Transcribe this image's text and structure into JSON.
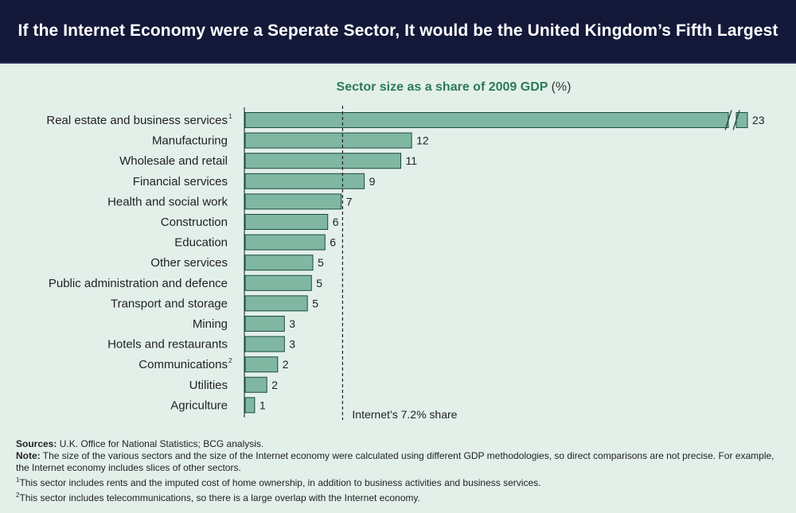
{
  "banner": {
    "title": "If the Internet Economy were a Seperate Sector, It would be the United Kingdom’s Fifth Largest"
  },
  "chart_data": {
    "type": "bar",
    "orientation": "horizontal",
    "title": "Sector size as a share of 2009 GDP",
    "title_unit": "(%)",
    "categories": [
      "Real estate and business services",
      "Manufacturing",
      "Wholesale and retail",
      "Financial services",
      "Health and social work",
      "Construction",
      "Education",
      "Other services",
      "Public administration and defence",
      "Transport and storage",
      "Mining",
      "Hotels and restaurants",
      "Communications",
      "Utilities",
      "Agriculture"
    ],
    "category_footnote_marks": [
      "1",
      "",
      "",
      "",
      "",
      "",
      "",
      "",
      "",
      "",
      "",
      "",
      "2",
      "",
      ""
    ],
    "values": [
      23,
      12,
      11,
      9,
      7,
      6,
      6,
      5,
      5,
      5,
      3,
      3,
      2,
      2,
      1
    ],
    "value_labels": [
      "23",
      "12",
      "11",
      "9",
      "7",
      "6",
      "6",
      "5",
      "5",
      "5",
      "3",
      "3",
      "2",
      "2",
      "1"
    ],
    "estimated_bar_lengths": [
      23,
      12.3,
      11.5,
      8.8,
      7.1,
      6.1,
      5.9,
      5.0,
      4.9,
      4.6,
      2.9,
      2.9,
      2.4,
      1.6,
      0.7
    ],
    "broken_axis_bar": "Real estate and business services",
    "reference_line": {
      "value": 7.2,
      "label": "Internet’s 7.2% share",
      "style": "dashed"
    },
    "bar_color": "#7fb7a2",
    "bar_stroke": "#1f4a3d",
    "grid": false
  },
  "footnotes": {
    "sources_label": "Sources:",
    "sources_text": " U.K. Office for National Statistics; BCG analysis.",
    "note_label": "Note:",
    "note_text": " The size of the various sectors and the size of the Internet economy were calculated using different GDP methodologies, so direct comparisons are not precise. For example, the Internet economy includes slices of other sectors.",
    "fn1_mark": "1",
    "fn1_text": "This sector includes rents and the imputed cost of home ownership, in addition to business activities and business services.",
    "fn2_mark": "2",
    "fn2_text": "This sector includes telecommunications, so there is a large overlap with the Internet economy."
  }
}
